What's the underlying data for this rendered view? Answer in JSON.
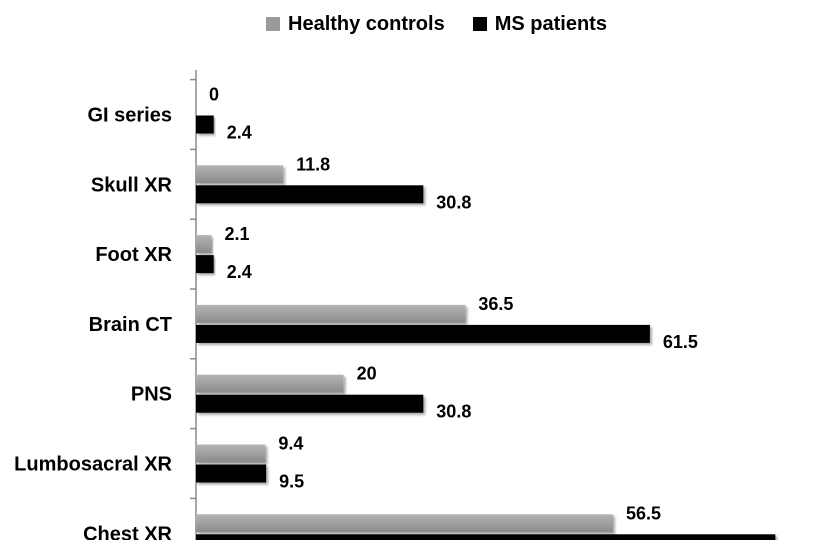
{
  "chart_data": {
    "type": "bar",
    "orientation": "horizontal",
    "categories": [
      "GI series",
      "Skull XR",
      "Foot XR",
      "Brain CT",
      "PNS",
      "Lumbosacral XR",
      "Chest XR"
    ],
    "series": [
      {
        "name": "Healthy controls",
        "color": "#9a9a9a",
        "values": [
          0,
          11.8,
          2.1,
          36.5,
          20,
          9.4,
          56.5
        ]
      },
      {
        "name": "MS patients",
        "color": "#000000",
        "values": [
          2.4,
          30.8,
          2.4,
          61.5,
          30.8,
          9.5,
          78.5
        ]
      }
    ],
    "value_labels": {
      "Healthy controls": [
        "0",
        "11.8",
        "2.1",
        "36.5",
        "20",
        "9.4",
        "56.5"
      ],
      "MS patients": [
        "2.4",
        "30.8",
        "2.4",
        "61.5",
        "30.8",
        "9.5",
        "78.5"
      ]
    },
    "xlim": [
      0,
      78.5
    ],
    "legend_position": "top",
    "grid": false
  }
}
